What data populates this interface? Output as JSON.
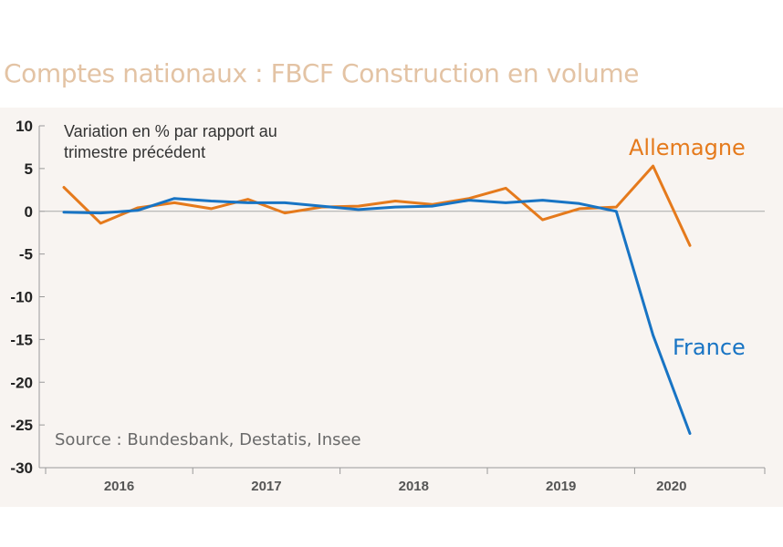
{
  "page": {
    "title": "Comptes nationaux : FBCF Construction en volume"
  },
  "chart_data": {
    "type": "line",
    "subtitle_lines": [
      "Variation en % par rapport au",
      "trimestre précédent"
    ],
    "source": "Source : Bundesbank, Destatis, Insee",
    "x": [
      "2016-T1",
      "2016-T2",
      "2016-T3",
      "2016-T4",
      "2017-T1",
      "2017-T2",
      "2017-T3",
      "2017-T4",
      "2018-T1",
      "2018-T2",
      "2018-T3",
      "2018-T4",
      "2019-T1",
      "2019-T2",
      "2019-T3",
      "2019-T4",
      "2020-T1",
      "2020-T2"
    ],
    "x_tick_labels": [
      "2016",
      "2017",
      "2018",
      "2019",
      "2020"
    ],
    "ylim": [
      -30,
      10
    ],
    "y_ticks": [
      10,
      5,
      0,
      -5,
      -10,
      -15,
      -20,
      -25,
      -30
    ],
    "grid": false,
    "series": [
      {
        "name": "Allemagne",
        "color": "#e57a1c",
        "values": [
          2.8,
          -1.4,
          0.4,
          1.0,
          0.3,
          1.4,
          -0.2,
          0.5,
          0.6,
          1.2,
          0.8,
          1.5,
          2.7,
          -1.0,
          0.3,
          0.5,
          5.3,
          -4.0
        ]
      },
      {
        "name": "France",
        "color": "#1874c4",
        "values": [
          -0.1,
          -0.2,
          0.1,
          1.5,
          1.2,
          1.0,
          1.0,
          0.6,
          0.2,
          0.5,
          0.6,
          1.3,
          1.0,
          1.3,
          0.9,
          0.0,
          -14.5,
          -26.0
        ]
      }
    ]
  }
}
